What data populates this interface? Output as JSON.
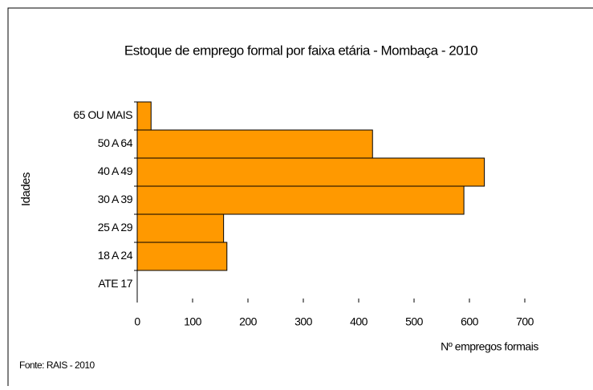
{
  "chart_data": {
    "type": "hbar",
    "title": "Estoque de emprego formal por faixa etária - Mombaça  - 2010",
    "y_label": "Idades",
    "x_label": "Nº empregos formais",
    "source": "Fonte: RAIS - 2010",
    "categories": [
      "65 OU MAIS",
      "50 A 64",
      "40 A 49",
      "30 A 39",
      "25 A 29",
      "18 A 24",
      "ATE 17"
    ],
    "values": [
      25,
      425,
      627,
      590,
      156,
      162,
      0
    ],
    "color": "#ff9900",
    "xlim": [
      0,
      700
    ],
    "xticks": [
      0,
      100,
      200,
      300,
      400,
      500,
      600,
      700
    ],
    "grid": false
  }
}
